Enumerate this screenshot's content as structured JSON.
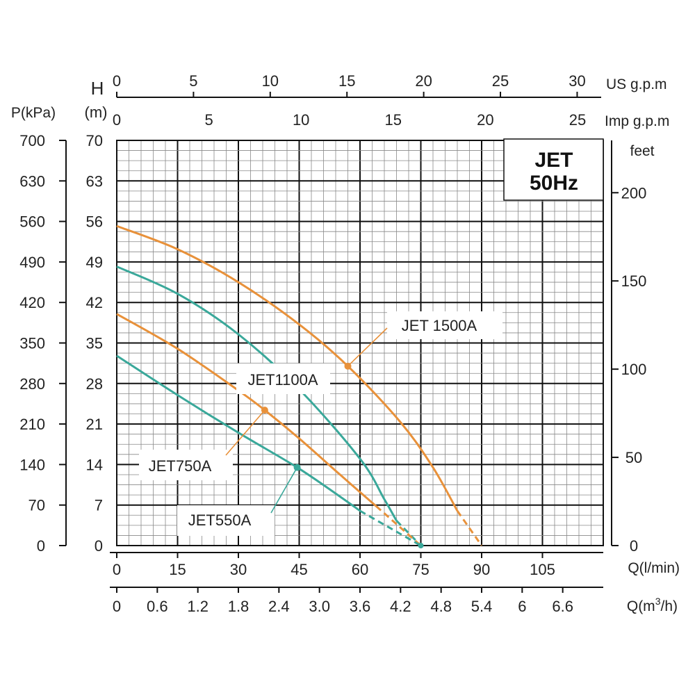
{
  "chart_data": {
    "type": "line",
    "title_box": {
      "line1": "JET",
      "line2": "50Hz"
    },
    "x_primary": {
      "label": "Q(l/min)",
      "ticks": [
        0,
        15,
        30,
        45,
        60,
        75,
        90,
        105
      ],
      "range": [
        0,
        120
      ]
    },
    "x_secondary": {
      "label_prefix": "Q(m",
      "label_sup": "3",
      "label_suffix": "/h)",
      "ticks": [
        "0",
        "0.6",
        "1.2",
        "1.8",
        "2.4",
        "3.0",
        "3.6",
        "4.2",
        "4.8",
        "5.4",
        "6",
        "6.6"
      ],
      "range": [
        0,
        7.2
      ]
    },
    "x_top_us": {
      "label": "US g.p.m",
      "ticks": [
        0,
        5,
        10,
        15,
        20,
        25,
        30
      ]
    },
    "x_top_imp": {
      "label": "Imp g.p.m",
      "ticks": [
        0,
        5,
        10,
        15,
        20,
        25
      ]
    },
    "y_head": {
      "label_top": "H",
      "label": "(m)",
      "ticks": [
        0,
        7,
        14,
        21,
        28,
        35,
        42,
        49,
        56,
        63,
        70
      ],
      "range": [
        0,
        70
      ]
    },
    "y_pressure": {
      "label": "P(kPa)",
      "ticks": [
        0,
        70,
        140,
        210,
        280,
        350,
        420,
        490,
        560,
        630,
        700
      ]
    },
    "y_feet": {
      "label": "feet",
      "ticks": [
        0,
        50,
        100,
        150,
        200
      ]
    },
    "grid": true,
    "series": [
      {
        "name": "JET 1500A",
        "color": "#e8913a",
        "x": [
          0,
          15,
          30,
          45,
          57,
          70,
          78,
          84
        ],
        "y": [
          55.2,
          51.2,
          45.5,
          38.2,
          31.0,
          21.3,
          13.5,
          6.0
        ],
        "dashed_x": [
          84,
          90
        ],
        "dashed_y": [
          6.0,
          0
        ],
        "marker": {
          "x": 57,
          "y": 31.0
        }
      },
      {
        "name": "JET1100A",
        "color": "#3aa89a",
        "x": [
          0,
          15,
          30,
          45,
          60,
          66,
          69
        ],
        "y": [
          48.2,
          43.5,
          36.5,
          27.0,
          15.0,
          8.0,
          4.3
        ],
        "dashed_x": [
          69,
          75
        ],
        "dashed_y": [
          4.3,
          0
        ],
        "marker": null
      },
      {
        "name": "JET750A",
        "color": "#e8913a",
        "x": [
          0,
          15,
          30,
          36.5,
          45,
          55,
          64
        ],
        "y": [
          40.0,
          34.0,
          26.8,
          23.4,
          18.5,
          12.3,
          6.8
        ],
        "dashed_x": [
          64,
          75
        ],
        "dashed_y": [
          6.8,
          0
        ],
        "marker": {
          "x": 36.5,
          "y": 23.4
        }
      },
      {
        "name": "JET550A",
        "color": "#3aa89a",
        "x": [
          0,
          15,
          30,
          44.5,
          55,
          60
        ],
        "y": [
          32.8,
          26.0,
          19.5,
          13.5,
          8.5,
          6.0
        ],
        "dashed_x": [
          60,
          75
        ],
        "dashed_y": [
          6.0,
          0
        ],
        "marker": {
          "x": 44.5,
          "y": 13.5
        }
      }
    ],
    "labels": [
      {
        "series": "JET 1500A",
        "text": "JET 1500A"
      },
      {
        "series": "JET1100A",
        "text": "JET1100A"
      },
      {
        "series": "JET750A",
        "text": "JET750A"
      },
      {
        "series": "JET550A",
        "text": "JET550A"
      }
    ]
  }
}
